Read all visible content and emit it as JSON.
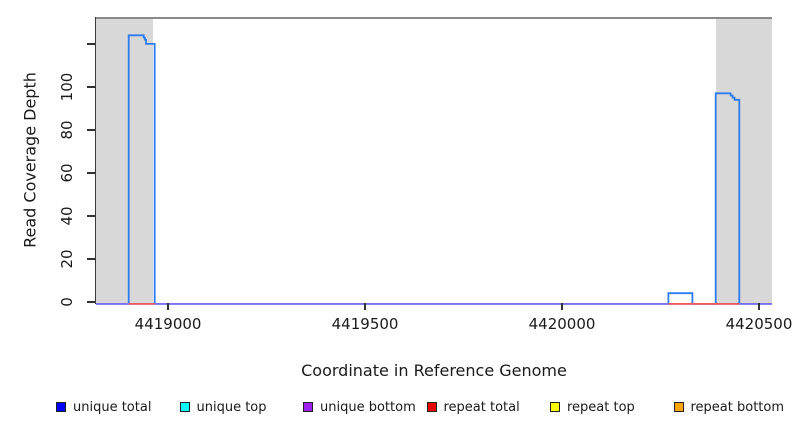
{
  "axes": {
    "y_title": "Read Coverage Depth",
    "x_title": "Coordinate in Reference Genome"
  },
  "colors": {
    "shading": "#d8d8d8",
    "plot_top_border": "#8a8a8a",
    "axis": "#3a3a3a"
  },
  "chart_data": {
    "type": "line",
    "subtype": "step-coverage",
    "title": "",
    "xlabel": "Coordinate in Reference Genome",
    "ylabel": "Read Coverage Depth",
    "xlim": [
      4418817,
      4420533
    ],
    "ylim": [
      -0.5,
      132.6
    ],
    "grid": false,
    "legend_position": "bottom",
    "x_ticks": [
      {
        "value": 4419000,
        "label": "4419000"
      },
      {
        "value": 4419500,
        "label": "4419500"
      },
      {
        "value": 4420000,
        "label": "4420000"
      },
      {
        "value": 4420500,
        "label": "4420500"
      }
    ],
    "y_ticks": [
      {
        "value": 0,
        "label": "0"
      },
      {
        "value": 20,
        "label": "20"
      },
      {
        "value": 40,
        "label": "40"
      },
      {
        "value": 60,
        "label": "60"
      },
      {
        "value": 80,
        "label": "80"
      },
      {
        "value": 100,
        "label": "100"
      },
      {
        "value": 120,
        "label": ""
      }
    ],
    "shaded_regions": [
      {
        "x0": 4418817,
        "x1": 4418962
      },
      {
        "x0": 4420390,
        "x1": 4420533
      }
    ],
    "series": [
      {
        "name": "unique total",
        "legend_color": "#0000ff",
        "line_color": "#2e7bf0",
        "lines": [
          [
            [
              4418817,
              0
            ],
            [
              4418900,
              0
            ],
            [
              4418900,
              125
            ],
            [
              4418938,
              125
            ],
            [
              4418938,
              124
            ],
            [
              4418941,
              124
            ],
            [
              4418941,
              123
            ],
            [
              4418944,
              123
            ],
            [
              4418944,
              121
            ],
            [
              4418966,
              121
            ],
            [
              4418966,
              0
            ],
            [
              4420270,
              0
            ],
            [
              4420270,
              5
            ],
            [
              4420331,
              5
            ],
            [
              4420331,
              0
            ],
            [
              4420390,
              0
            ],
            [
              4420390,
              98
            ],
            [
              4420428,
              98
            ],
            [
              4420428,
              97
            ],
            [
              4420433,
              97
            ],
            [
              4420433,
              96
            ],
            [
              4420438,
              96
            ],
            [
              4420438,
              95
            ],
            [
              4420450,
              95
            ],
            [
              4420450,
              0
            ],
            [
              4420533,
              0
            ]
          ]
        ]
      },
      {
        "name": "unique top",
        "legend_color": "#00ffff",
        "line_color": "#00ffff",
        "lines": []
      },
      {
        "name": "unique bottom",
        "legend_color": "#a020f0",
        "line_color": "#7d6ef2",
        "lines": [
          [
            [
              4418817,
              0
            ],
            [
              4420533,
              0
            ]
          ]
        ]
      },
      {
        "name": "repeat total",
        "legend_color": "#e60000",
        "line_color": "#f55a5a",
        "lines": [
          [
            [
              4418900,
              0
            ],
            [
              4418966,
              0
            ]
          ],
          [
            [
              4420270,
              0
            ],
            [
              4420450,
              0
            ]
          ]
        ]
      },
      {
        "name": "repeat top",
        "legend_color": "#ffff00",
        "line_color": "#ffff00",
        "lines": []
      },
      {
        "name": "repeat bottom",
        "legend_color": "#ffa500",
        "line_color": "#ffa500",
        "lines": []
      }
    ]
  },
  "legend": {
    "items": [
      {
        "label": "unique total",
        "color": "#0000ff"
      },
      {
        "label": "unique top",
        "color": "#00ffff"
      },
      {
        "label": "unique bottom",
        "color": "#a020f0"
      },
      {
        "label": "repeat total",
        "color": "#e60000"
      },
      {
        "label": "repeat top",
        "color": "#ffff00"
      },
      {
        "label": "repeat bottom",
        "color": "#ffa500"
      }
    ]
  }
}
